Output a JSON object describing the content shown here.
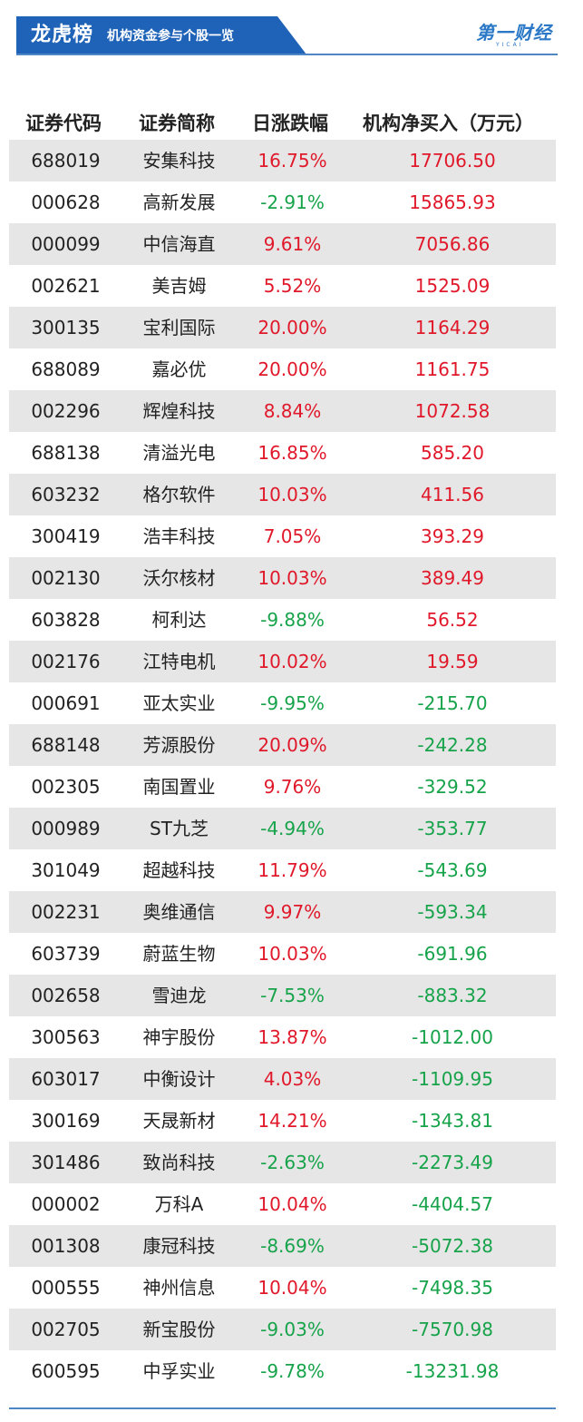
{
  "banner": {
    "title": "龙虎榜",
    "subtitle": "机构资金参与个股一览",
    "color": "#1f63b8"
  },
  "logo": {
    "text": "第一财经",
    "sub": "YICAI"
  },
  "table": {
    "headers": [
      "证券代码",
      "证券简称",
      "日涨跌幅",
      "机构净买入（万元）"
    ],
    "up_color": "#e0182a",
    "down_color": "#16a34a",
    "rows": [
      {
        "code": "688019",
        "name": "安集科技",
        "change": "16.75%",
        "net": "17706.50"
      },
      {
        "code": "000628",
        "name": "高新发展",
        "change": "-2.91%",
        "net": "15865.93"
      },
      {
        "code": "000099",
        "name": "中信海直",
        "change": "9.61%",
        "net": "7056.86"
      },
      {
        "code": "002621",
        "name": "美吉姆",
        "change": "5.52%",
        "net": "1525.09"
      },
      {
        "code": "300135",
        "name": "宝利国际",
        "change": "20.00%",
        "net": "1164.29"
      },
      {
        "code": "688089",
        "name": "嘉必优",
        "change": "20.00%",
        "net": "1161.75"
      },
      {
        "code": "002296",
        "name": "辉煌科技",
        "change": "8.84%",
        "net": "1072.58"
      },
      {
        "code": "688138",
        "name": "清溢光电",
        "change": "16.85%",
        "net": "585.20"
      },
      {
        "code": "603232",
        "name": "格尔软件",
        "change": "10.03%",
        "net": "411.56"
      },
      {
        "code": "300419",
        "name": "浩丰科技",
        "change": "7.05%",
        "net": "393.29"
      },
      {
        "code": "002130",
        "name": "沃尔核材",
        "change": "10.03%",
        "net": "389.49"
      },
      {
        "code": "603828",
        "name": "柯利达",
        "change": "-9.88%",
        "net": "56.52"
      },
      {
        "code": "002176",
        "name": "江特电机",
        "change": "10.02%",
        "net": "19.59"
      },
      {
        "code": "000691",
        "name": "亚太实业",
        "change": "-9.95%",
        "net": "-215.70"
      },
      {
        "code": "688148",
        "name": "芳源股份",
        "change": "20.09%",
        "net": "-242.28"
      },
      {
        "code": "002305",
        "name": "南国置业",
        "change": "9.76%",
        "net": "-329.52"
      },
      {
        "code": "000989",
        "name": "ST九芝",
        "change": "-4.94%",
        "net": "-353.77"
      },
      {
        "code": "301049",
        "name": "超越科技",
        "change": "11.79%",
        "net": "-543.69"
      },
      {
        "code": "002231",
        "name": "奥维通信",
        "change": "9.97%",
        "net": "-593.34"
      },
      {
        "code": "603739",
        "name": "蔚蓝生物",
        "change": "10.03%",
        "net": "-691.96"
      },
      {
        "code": "002658",
        "name": "雪迪龙",
        "change": "-7.53%",
        "net": "-883.32"
      },
      {
        "code": "300563",
        "name": "神宇股份",
        "change": "13.87%",
        "net": "-1012.00"
      },
      {
        "code": "603017",
        "name": "中衡设计",
        "change": "4.03%",
        "net": "-1109.95"
      },
      {
        "code": "300169",
        "name": "天晟新材",
        "change": "14.21%",
        "net": "-1343.81"
      },
      {
        "code": "301486",
        "name": "致尚科技",
        "change": "-2.63%",
        "net": "-2273.49"
      },
      {
        "code": "000002",
        "name": "万科A",
        "change": "10.04%",
        "net": "-4404.57"
      },
      {
        "code": "001308",
        "name": "康冠科技",
        "change": "-8.69%",
        "net": "-5072.38"
      },
      {
        "code": "000555",
        "name": "神州信息",
        "change": "10.04%",
        "net": "-7498.35"
      },
      {
        "code": "002705",
        "name": "新宝股份",
        "change": "-9.03%",
        "net": "-7570.98"
      },
      {
        "code": "600595",
        "name": "中孚实业",
        "change": "-9.78%",
        "net": "-13231.98"
      }
    ]
  }
}
